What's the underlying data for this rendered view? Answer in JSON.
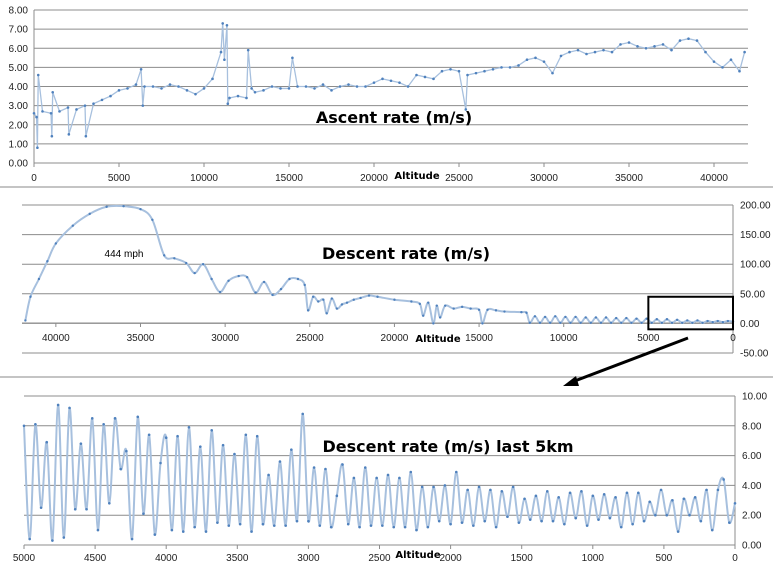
{
  "chart_data": [
    {
      "type": "line",
      "title": "Ascent rate (m/s)",
      "xlabel": "Altitude",
      "ylabel": "",
      "xlim": [
        0,
        42000
      ],
      "ylim": [
        0,
        8
      ],
      "x_ticks": [
        "0",
        "5000",
        "10000",
        "15000",
        "20000",
        "25000",
        "30000",
        "35000",
        "40000"
      ],
      "y_ticks": [
        "0.00",
        "1.00",
        "2.00",
        "3.00",
        "4.00",
        "5.00",
        "6.00",
        "7.00",
        "8.00"
      ],
      "y_axis_side": "left",
      "x_reversed": false,
      "grid": true,
      "line_color": "#a7c0de",
      "marker_color": "#4f81bd",
      "points": [
        [
          0,
          2.6
        ],
        [
          150,
          2.4
        ],
        [
          200,
          0.8
        ],
        [
          250,
          4.6
        ],
        [
          500,
          2.7
        ],
        [
          1000,
          2.6
        ],
        [
          1050,
          1.4
        ],
        [
          1100,
          3.7
        ],
        [
          1500,
          2.7
        ],
        [
          2000,
          2.9
        ],
        [
          2050,
          1.5
        ],
        [
          2500,
          2.8
        ],
        [
          3000,
          3.0
        ],
        [
          3050,
          1.4
        ],
        [
          3500,
          3.1
        ],
        [
          4000,
          3.3
        ],
        [
          4500,
          3.5
        ],
        [
          5000,
          3.8
        ],
        [
          5500,
          3.9
        ],
        [
          6000,
          4.1
        ],
        [
          6300,
          4.9
        ],
        [
          6400,
          3.0
        ],
        [
          6500,
          4.0
        ],
        [
          7000,
          4.0
        ],
        [
          7500,
          3.9
        ],
        [
          8000,
          4.1
        ],
        [
          8500,
          4.0
        ],
        [
          9000,
          3.8
        ],
        [
          9500,
          3.6
        ],
        [
          10000,
          3.9
        ],
        [
          10500,
          4.4
        ],
        [
          11000,
          5.8
        ],
        [
          11100,
          7.3
        ],
        [
          11200,
          5.4
        ],
        [
          11350,
          7.2
        ],
        [
          11400,
          3.1
        ],
        [
          11500,
          3.4
        ],
        [
          12000,
          3.5
        ],
        [
          12500,
          3.4
        ],
        [
          12600,
          5.9
        ],
        [
          12800,
          3.9
        ],
        [
          13000,
          3.7
        ],
        [
          13500,
          3.8
        ],
        [
          14000,
          4.0
        ],
        [
          14500,
          3.9
        ],
        [
          15000,
          3.9
        ],
        [
          15200,
          5.5
        ],
        [
          15500,
          4.0
        ],
        [
          16000,
          4.0
        ],
        [
          16500,
          3.9
        ],
        [
          17000,
          4.1
        ],
        [
          17500,
          3.8
        ],
        [
          18000,
          4.0
        ],
        [
          18500,
          4.1
        ],
        [
          19000,
          4.0
        ],
        [
          19500,
          4.0
        ],
        [
          20000,
          4.2
        ],
        [
          20500,
          4.4
        ],
        [
          21000,
          4.3
        ],
        [
          21500,
          4.2
        ],
        [
          22000,
          4.0
        ],
        [
          22500,
          4.6
        ],
        [
          23000,
          4.5
        ],
        [
          23500,
          4.4
        ],
        [
          24000,
          4.8
        ],
        [
          24500,
          4.9
        ],
        [
          25000,
          4.8
        ],
        [
          25400,
          2.8
        ],
        [
          25500,
          4.6
        ],
        [
          26000,
          4.7
        ],
        [
          26500,
          4.8
        ],
        [
          27000,
          4.9
        ],
        [
          27500,
          5.0
        ],
        [
          28000,
          5.0
        ],
        [
          28500,
          5.1
        ],
        [
          29000,
          5.4
        ],
        [
          29500,
          5.5
        ],
        [
          30000,
          5.3
        ],
        [
          30500,
          4.7
        ],
        [
          31000,
          5.6
        ],
        [
          31500,
          5.8
        ],
        [
          32000,
          5.9
        ],
        [
          32500,
          5.7
        ],
        [
          33000,
          5.8
        ],
        [
          33500,
          5.9
        ],
        [
          34000,
          5.8
        ],
        [
          34500,
          6.2
        ],
        [
          35000,
          6.3
        ],
        [
          35500,
          6.1
        ],
        [
          36000,
          6.0
        ],
        [
          36500,
          6.1
        ],
        [
          37000,
          6.2
        ],
        [
          37500,
          5.9
        ],
        [
          38000,
          6.4
        ],
        [
          38500,
          6.5
        ],
        [
          39000,
          6.4
        ],
        [
          39500,
          5.8
        ],
        [
          40000,
          5.3
        ],
        [
          40500,
          5.0
        ],
        [
          41000,
          5.4
        ],
        [
          41500,
          4.8
        ],
        [
          41800,
          5.8
        ]
      ]
    },
    {
      "type": "line",
      "title": "Descent rate (m/s)",
      "xlabel": "Altitude",
      "ylabel": "",
      "xlim": [
        42000,
        0
      ],
      "ylim": [
        -50,
        200
      ],
      "x_ticks": [
        "40000",
        "35000",
        "30000",
        "25000",
        "20000",
        "15000",
        "10000",
        "5000",
        "0"
      ],
      "y_ticks": [
        "-50.00",
        "0.00",
        "50.00",
        "100.00",
        "150.00",
        "200.00"
      ],
      "y_axis_side": "right",
      "x_reversed": true,
      "grid": true,
      "line_color": "#a7c0de",
      "marker_color": "#4f81bd",
      "annotations": [
        {
          "text": "444 mph",
          "x": 36500,
          "y": 178
        }
      ],
      "highlight_box": {
        "x_range": [
          5000,
          0
        ],
        "y_range": [
          -10,
          45
        ]
      },
      "points": [
        [
          41800,
          5
        ],
        [
          41500,
          45
        ],
        [
          41000,
          75
        ],
        [
          40500,
          105
        ],
        [
          40000,
          135
        ],
        [
          39000,
          165
        ],
        [
          38000,
          185
        ],
        [
          37000,
          197
        ],
        [
          36000,
          198
        ],
        [
          35000,
          193
        ],
        [
          34300,
          175
        ],
        [
          33600,
          115
        ],
        [
          33000,
          110
        ],
        [
          32300,
          102
        ],
        [
          31800,
          85
        ],
        [
          31300,
          100
        ],
        [
          30800,
          75
        ],
        [
          30300,
          53
        ],
        [
          29800,
          72
        ],
        [
          29200,
          80
        ],
        [
          28700,
          78
        ],
        [
          28200,
          52
        ],
        [
          27700,
          70
        ],
        [
          27200,
          48
        ],
        [
          26700,
          58
        ],
        [
          26200,
          75
        ],
        [
          25700,
          75
        ],
        [
          25300,
          65
        ],
        [
          25100,
          22
        ],
        [
          24800,
          45
        ],
        [
          24500,
          37
        ],
        [
          24200,
          40
        ],
        [
          24000,
          17
        ],
        [
          23700,
          42
        ],
        [
          23400,
          25
        ],
        [
          23100,
          32
        ],
        [
          22800,
          35
        ],
        [
          22400,
          40
        ],
        [
          22000,
          43
        ],
        [
          21500,
          47
        ],
        [
          21000,
          45
        ],
        [
          20000,
          40
        ],
        [
          19000,
          37
        ],
        [
          18500,
          33
        ],
        [
          18300,
          13
        ],
        [
          18000,
          35
        ],
        [
          17700,
          0
        ],
        [
          17500,
          30
        ],
        [
          17300,
          10
        ],
        [
          17000,
          30
        ],
        [
          16500,
          25
        ],
        [
          16000,
          28
        ],
        [
          15500,
          25
        ],
        [
          15000,
          23
        ],
        [
          14800,
          0
        ],
        [
          14500,
          23
        ],
        [
          14000,
          22
        ],
        [
          13500,
          20
        ],
        [
          12500,
          19
        ],
        [
          12200,
          18
        ],
        [
          12000,
          1
        ],
        [
          11700,
          12
        ],
        [
          11400,
          1
        ],
        [
          11100,
          11
        ],
        [
          10800,
          1
        ],
        [
          10500,
          12
        ],
        [
          10200,
          1
        ],
        [
          9900,
          11
        ],
        [
          9600,
          1
        ],
        [
          9300,
          11
        ],
        [
          9000,
          1
        ],
        [
          8700,
          10
        ],
        [
          8400,
          1
        ],
        [
          8100,
          10
        ],
        [
          7800,
          1
        ],
        [
          7500,
          10
        ],
        [
          7200,
          1
        ],
        [
          6900,
          9
        ],
        [
          6600,
          1
        ],
        [
          6300,
          9
        ],
        [
          6000,
          1
        ],
        [
          5700,
          8
        ],
        [
          5400,
          1
        ],
        [
          5100,
          8
        ],
        [
          4800,
          1
        ],
        [
          4500,
          7
        ],
        [
          4200,
          1
        ],
        [
          3900,
          7
        ],
        [
          3600,
          1
        ],
        [
          3300,
          6
        ],
        [
          3000,
          1
        ],
        [
          2700,
          5
        ],
        [
          2400,
          1
        ],
        [
          2100,
          5
        ],
        [
          1800,
          1
        ],
        [
          1500,
          4
        ],
        [
          1200,
          2
        ],
        [
          900,
          4
        ],
        [
          600,
          2
        ],
        [
          300,
          4
        ],
        [
          0,
          3
        ]
      ]
    },
    {
      "type": "line",
      "title": "Descent rate (m/s) last 5km",
      "xlabel": "Altitude",
      "ylabel": "",
      "xlim": [
        5000,
        0
      ],
      "ylim": [
        0,
        10
      ],
      "x_ticks": [
        "5000",
        "4500",
        "4000",
        "3500",
        "3000",
        "2500",
        "2000",
        "1500",
        "1000",
        "500",
        "0"
      ],
      "y_ticks": [
        "0.00",
        "2.00",
        "4.00",
        "6.00",
        "8.00",
        "10.00"
      ],
      "y_axis_side": "right",
      "x_reversed": true,
      "grid": true,
      "line_color": "#a7c0de",
      "marker_color": "#4f81bd",
      "points": [
        [
          5000,
          8.0
        ],
        [
          4960,
          0.4
        ],
        [
          4920,
          8.1
        ],
        [
          4880,
          2.5
        ],
        [
          4840,
          6.9
        ],
        [
          4800,
          0.3
        ],
        [
          4760,
          9.4
        ],
        [
          4720,
          0.5
        ],
        [
          4680,
          9.2
        ],
        [
          4640,
          2.4
        ],
        [
          4600,
          6.8
        ],
        [
          4560,
          2.4
        ],
        [
          4520,
          8.5
        ],
        [
          4480,
          1.0
        ],
        [
          4440,
          8.1
        ],
        [
          4400,
          2.8
        ],
        [
          4360,
          8.5
        ],
        [
          4320,
          5.1
        ],
        [
          4280,
          6.3
        ],
        [
          4240,
          0.4
        ],
        [
          4200,
          8.6
        ],
        [
          4160,
          2.1
        ],
        [
          4120,
          7.4
        ],
        [
          4080,
          0.7
        ],
        [
          4040,
          5.5
        ],
        [
          4000,
          7.2
        ],
        [
          3960,
          1.0
        ],
        [
          3920,
          7.3
        ],
        [
          3880,
          0.9
        ],
        [
          3840,
          7.9
        ],
        [
          3800,
          1.2
        ],
        [
          3760,
          6.6
        ],
        [
          3720,
          0.9
        ],
        [
          3680,
          7.7
        ],
        [
          3640,
          1.5
        ],
        [
          3600,
          6.7
        ],
        [
          3560,
          1.3
        ],
        [
          3520,
          6.1
        ],
        [
          3480,
          1.4
        ],
        [
          3440,
          7.4
        ],
        [
          3400,
          0.9
        ],
        [
          3360,
          7.3
        ],
        [
          3320,
          1.4
        ],
        [
          3280,
          4.7
        ],
        [
          3240,
          1.3
        ],
        [
          3200,
          5.6
        ],
        [
          3160,
          1.3
        ],
        [
          3120,
          6.4
        ],
        [
          3080,
          1.6
        ],
        [
          3040,
          8.8
        ],
        [
          3000,
          1.6
        ],
        [
          2960,
          5.2
        ],
        [
          2920,
          1.3
        ],
        [
          2880,
          5.1
        ],
        [
          2840,
          1.2
        ],
        [
          2800,
          3.3
        ],
        [
          2760,
          5.4
        ],
        [
          2720,
          1.4
        ],
        [
          2680,
          4.5
        ],
        [
          2640,
          1.2
        ],
        [
          2600,
          5.2
        ],
        [
          2560,
          1.3
        ],
        [
          2520,
          4.5
        ],
        [
          2480,
          1.3
        ],
        [
          2440,
          4.7
        ],
        [
          2400,
          1.2
        ],
        [
          2360,
          4.5
        ],
        [
          2320,
          1.2
        ],
        [
          2280,
          4.9
        ],
        [
          2240,
          1.0
        ],
        [
          2200,
          3.9
        ],
        [
          2160,
          1.2
        ],
        [
          2120,
          3.9
        ],
        [
          2080,
          1.6
        ],
        [
          2040,
          4.0
        ],
        [
          2000,
          1.4
        ],
        [
          1960,
          4.9
        ],
        [
          1920,
          1.5
        ],
        [
          1880,
          3.7
        ],
        [
          1840,
          1.3
        ],
        [
          1800,
          3.9
        ],
        [
          1760,
          1.6
        ],
        [
          1720,
          3.7
        ],
        [
          1680,
          1.2
        ],
        [
          1640,
          3.6
        ],
        [
          1600,
          1.9
        ],
        [
          1560,
          3.9
        ],
        [
          1520,
          1.5
        ],
        [
          1480,
          3.1
        ],
        [
          1440,
          1.7
        ],
        [
          1400,
          3.3
        ],
        [
          1360,
          1.6
        ],
        [
          1320,
          3.6
        ],
        [
          1280,
          1.6
        ],
        [
          1240,
          3.2
        ],
        [
          1200,
          1.4
        ],
        [
          1160,
          3.5
        ],
        [
          1120,
          1.8
        ],
        [
          1080,
          3.6
        ],
        [
          1040,
          1.3
        ],
        [
          1000,
          3.3
        ],
        [
          960,
          1.7
        ],
        [
          920,
          3.4
        ],
        [
          880,
          1.8
        ],
        [
          840,
          3.2
        ],
        [
          800,
          1.2
        ],
        [
          760,
          3.5
        ],
        [
          720,
          1.4
        ],
        [
          680,
          3.5
        ],
        [
          640,
          1.6
        ],
        [
          600,
          2.9
        ],
        [
          560,
          2.0
        ],
        [
          520,
          3.7
        ],
        [
          480,
          2.0
        ],
        [
          440,
          3.0
        ],
        [
          400,
          0.9
        ],
        [
          360,
          3.1
        ],
        [
          320,
          2.0
        ],
        [
          280,
          3.2
        ],
        [
          240,
          1.6
        ],
        [
          200,
          3.7
        ],
        [
          160,
          1.0
        ],
        [
          120,
          3.7
        ],
        [
          80,
          4.4
        ],
        [
          40,
          1.5
        ],
        [
          0,
          2.8
        ]
      ]
    }
  ]
}
